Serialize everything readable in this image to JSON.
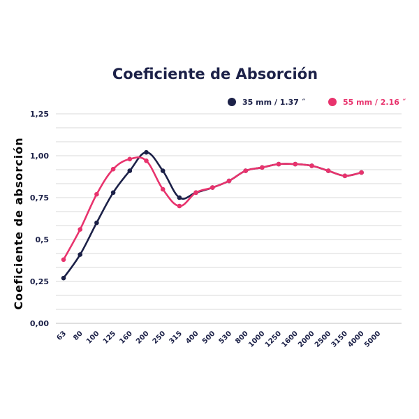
{
  "chart_data": {
    "type": "line",
    "title": "Coeficiente de Absorción",
    "xlabel": "",
    "ylabel": "Coeficiente de absorción",
    "categories": [
      "63",
      "80",
      "100",
      "125",
      "160",
      "200",
      "250",
      "315",
      "400",
      "500",
      "530",
      "800",
      "1000",
      "1250",
      "1600",
      "2000",
      "2500",
      "3150",
      "4000",
      "5000"
    ],
    "ylim": [
      0,
      1.25
    ],
    "yticks": [
      0,
      0.25,
      0.5,
      0.75,
      1.0,
      1.25
    ],
    "ytick_labels": [
      "0,00",
      "0,25",
      "0,5",
      "0,75",
      "1,00",
      "1,25"
    ],
    "grid": true,
    "legend_position": "top-right",
    "series": [
      {
        "name": "35 mm / 1.37 ˝",
        "color": "#1c2148",
        "x": [
          0,
          1,
          2,
          3,
          4,
          5,
          6,
          7,
          8,
          9,
          10,
          11,
          12,
          13,
          14,
          15,
          16,
          17,
          18
        ],
        "values": [
          0.27,
          0.41,
          0.6,
          0.78,
          0.91,
          1.02,
          0.91,
          0.75,
          0.78,
          0.81,
          0.85,
          0.91,
          0.93,
          0.95,
          0.95,
          0.94,
          0.91,
          0.88,
          0.9
        ]
      },
      {
        "name": "55 mm / 2.16 ˝",
        "color": "#e8336d",
        "x": [
          0,
          1,
          2,
          3,
          4,
          5,
          6,
          7,
          8,
          9,
          10,
          11,
          12,
          13,
          14,
          15,
          16,
          17,
          18
        ],
        "values": [
          0.38,
          0.56,
          0.77,
          0.92,
          0.98,
          0.97,
          0.8,
          0.7,
          0.78,
          0.81,
          0.85,
          0.91,
          0.93,
          0.95,
          0.95,
          0.94,
          0.91,
          0.88,
          0.9
        ]
      }
    ]
  }
}
